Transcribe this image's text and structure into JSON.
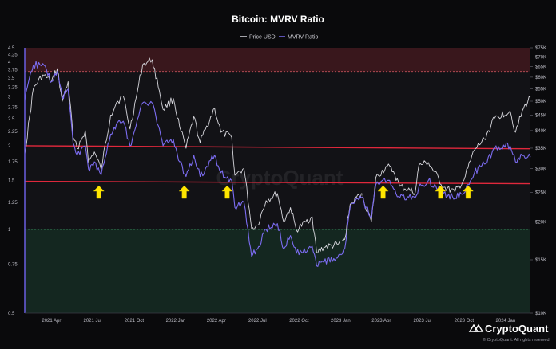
{
  "chart_data": {
    "type": "line",
    "title": "Bitcoin: MVRV Ratio",
    "legend_position": "top-center",
    "legend": [
      "Price USD",
      "MVRV Ratio"
    ],
    "x_tick_labels": [
      "2021 Apr",
      "2021 Jul",
      "2021 Oct",
      "2022 Jan",
      "2022 Apr",
      "2022 Jul",
      "2022 Oct",
      "2023 Jan",
      "2023 Apr",
      "2023 Jul",
      "2023 Oct",
      "2024 Jan"
    ],
    "x_range": [
      "2021-02-01",
      "2024-02-25"
    ],
    "y_left": {
      "scale": "log",
      "ylim": [
        0.5,
        4.5
      ],
      "tick_labels": [
        "0.5",
        "0.75",
        "1",
        "1.25",
        "1.5",
        "1.75",
        "2",
        "2.25",
        "2.5",
        "2.75",
        "3",
        "3.25",
        "3.5",
        "3.75",
        "4",
        "4.25",
        "4.5"
      ]
    },
    "y_right": {
      "scale": "log",
      "ylim": [
        10000,
        75000
      ],
      "tick_labels": [
        "$10K",
        "$15K",
        "$20K",
        "$25K",
        "$30K",
        "$35K",
        "$40K",
        "$45K",
        "$50K",
        "$55K",
        "$60K",
        "$65K",
        "$70K",
        "$75K"
      ]
    },
    "grid": false,
    "zones": [
      {
        "name": "overvalued",
        "from": 3.7,
        "to": 4.5,
        "color": "#5a1c22"
      },
      {
        "name": "undervalued",
        "from": 0.5,
        "to": 1.0,
        "color": "#16382a"
      }
    ],
    "support_lines": [
      {
        "start": [
          "2021-02-01",
          2.0
        ],
        "end": [
          "2024-02-25",
          1.95
        ],
        "color": "#e0283c"
      },
      {
        "start": [
          "2021-02-01",
          1.49
        ],
        "end": [
          "2024-02-25",
          1.46
        ],
        "color": "#e0283c"
      }
    ],
    "arrow_markers": [
      "2021-07-15",
      "2022-01-20",
      "2022-04-25",
      "2023-04-05",
      "2023-08-10",
      "2023-10-10"
    ],
    "series": [
      {
        "name": "Price USD",
        "axis": "right",
        "color": "#d8d8de",
        "points": [
          [
            "2021-02-01",
            33500
          ],
          [
            "2021-02-20",
            55000
          ],
          [
            "2021-03-13",
            61000
          ],
          [
            "2021-04-01",
            58000
          ],
          [
            "2021-04-14",
            64000
          ],
          [
            "2021-04-25",
            50000
          ],
          [
            "2021-05-08",
            58000
          ],
          [
            "2021-05-19",
            38000
          ],
          [
            "2021-05-28",
            35000
          ],
          [
            "2021-06-15",
            40000
          ],
          [
            "2021-06-22",
            31500
          ],
          [
            "2021-07-05",
            34000
          ],
          [
            "2021-07-20",
            29800
          ],
          [
            "2021-08-10",
            45000
          ],
          [
            "2021-08-23",
            49500
          ],
          [
            "2021-09-07",
            52000
          ],
          [
            "2021-09-22",
            40500
          ],
          [
            "2021-10-05",
            51000
          ],
          [
            "2021-10-20",
            66000
          ],
          [
            "2021-11-10",
            68500
          ],
          [
            "2021-11-26",
            54000
          ],
          [
            "2021-12-04",
            47000
          ],
          [
            "2021-12-27",
            51000
          ],
          [
            "2022-01-10",
            41000
          ],
          [
            "2022-01-24",
            35000
          ],
          [
            "2022-02-10",
            44500
          ],
          [
            "2022-02-24",
            36500
          ],
          [
            "2022-03-28",
            47500
          ],
          [
            "2022-04-11",
            39500
          ],
          [
            "2022-05-05",
            38000
          ],
          [
            "2022-05-12",
            28500
          ],
          [
            "2022-06-01",
            30000
          ],
          [
            "2022-06-13",
            22000
          ],
          [
            "2022-06-18",
            19000
          ],
          [
            "2022-07-01",
            19500
          ],
          [
            "2022-07-20",
            23500
          ],
          [
            "2022-08-14",
            24800
          ],
          [
            "2022-08-28",
            20000
          ],
          [
            "2022-09-12",
            22300
          ],
          [
            "2022-09-25",
            18800
          ],
          [
            "2022-10-30",
            20800
          ],
          [
            "2022-11-09",
            15800
          ],
          [
            "2022-11-25",
            16500
          ],
          [
            "2022-12-25",
            16800
          ],
          [
            "2023-01-10",
            17500
          ],
          [
            "2023-01-22",
            22800
          ],
          [
            "2023-02-16",
            24800
          ],
          [
            "2023-03-10",
            20000
          ],
          [
            "2023-03-20",
            28000
          ],
          [
            "2023-04-14",
            30500
          ],
          [
            "2023-04-28",
            29300
          ],
          [
            "2023-05-12",
            26200
          ],
          [
            "2023-06-15",
            25000
          ],
          [
            "2023-06-23",
            30700
          ],
          [
            "2023-07-14",
            31400
          ],
          [
            "2023-08-17",
            26000
          ],
          [
            "2023-09-11",
            25100
          ],
          [
            "2023-10-01",
            27500
          ],
          [
            "2023-10-24",
            34500
          ],
          [
            "2023-11-15",
            37500
          ],
          [
            "2023-12-08",
            44000
          ],
          [
            "2024-01-11",
            46500
          ],
          [
            "2024-01-23",
            39500
          ],
          [
            "2024-02-10",
            47500
          ],
          [
            "2024-02-25",
            51500
          ]
        ]
      },
      {
        "name": "MVRV Ratio",
        "axis": "left",
        "color": "#7b6cf0",
        "points": [
          [
            "2021-02-01",
            2.9
          ],
          [
            "2021-02-20",
            3.9
          ],
          [
            "2021-03-13",
            3.95
          ],
          [
            "2021-04-01",
            3.4
          ],
          [
            "2021-04-14",
            3.7
          ],
          [
            "2021-04-25",
            3.0
          ],
          [
            "2021-05-08",
            3.2
          ],
          [
            "2021-05-19",
            2.05
          ],
          [
            "2021-05-28",
            1.85
          ],
          [
            "2021-06-15",
            2.0
          ],
          [
            "2021-06-22",
            1.65
          ],
          [
            "2021-07-05",
            1.75
          ],
          [
            "2021-07-20",
            1.57
          ],
          [
            "2021-08-10",
            2.2
          ],
          [
            "2021-08-23",
            2.4
          ],
          [
            "2021-09-07",
            2.45
          ],
          [
            "2021-09-22",
            2.0
          ],
          [
            "2021-10-05",
            2.35
          ],
          [
            "2021-10-20",
            2.85
          ],
          [
            "2021-11-10",
            2.85
          ],
          [
            "2021-11-26",
            2.3
          ],
          [
            "2021-12-04",
            2.0
          ],
          [
            "2021-12-27",
            2.1
          ],
          [
            "2022-01-10",
            1.75
          ],
          [
            "2022-01-24",
            1.55
          ],
          [
            "2022-02-10",
            1.85
          ],
          [
            "2022-02-24",
            1.55
          ],
          [
            "2022-03-28",
            1.85
          ],
          [
            "2022-04-11",
            1.6
          ],
          [
            "2022-05-05",
            1.5
          ],
          [
            "2022-05-12",
            1.2
          ],
          [
            "2022-06-01",
            1.25
          ],
          [
            "2022-06-13",
            0.9
          ],
          [
            "2022-06-18",
            0.8
          ],
          [
            "2022-07-01",
            0.85
          ],
          [
            "2022-07-20",
            1.0
          ],
          [
            "2022-08-14",
            1.05
          ],
          [
            "2022-08-28",
            0.85
          ],
          [
            "2022-09-12",
            0.95
          ],
          [
            "2022-09-25",
            0.82
          ],
          [
            "2022-10-30",
            0.87
          ],
          [
            "2022-11-09",
            0.74
          ],
          [
            "2022-11-25",
            0.76
          ],
          [
            "2022-12-25",
            0.79
          ],
          [
            "2023-01-10",
            0.85
          ],
          [
            "2023-01-22",
            1.2
          ],
          [
            "2023-02-16",
            1.3
          ],
          [
            "2023-03-10",
            1.1
          ],
          [
            "2023-03-20",
            1.45
          ],
          [
            "2023-04-14",
            1.5
          ],
          [
            "2023-04-28",
            1.4
          ],
          [
            "2023-05-12",
            1.3
          ],
          [
            "2023-06-15",
            1.3
          ],
          [
            "2023-06-23",
            1.42
          ],
          [
            "2023-07-14",
            1.5
          ],
          [
            "2023-08-17",
            1.35
          ],
          [
            "2023-09-11",
            1.3
          ],
          [
            "2023-10-01",
            1.35
          ],
          [
            "2023-10-24",
            1.6
          ],
          [
            "2023-11-15",
            1.72
          ],
          [
            "2023-12-08",
            1.95
          ],
          [
            "2024-01-11",
            2.0
          ],
          [
            "2024-01-23",
            1.75
          ],
          [
            "2024-02-10",
            1.85
          ],
          [
            "2024-02-25",
            1.82
          ]
        ]
      }
    ]
  },
  "branding": {
    "logo_text": "CryptoQuant",
    "copyright": "© CryptoQuant. All rights reserved",
    "watermark": "CryptoQuant"
  }
}
